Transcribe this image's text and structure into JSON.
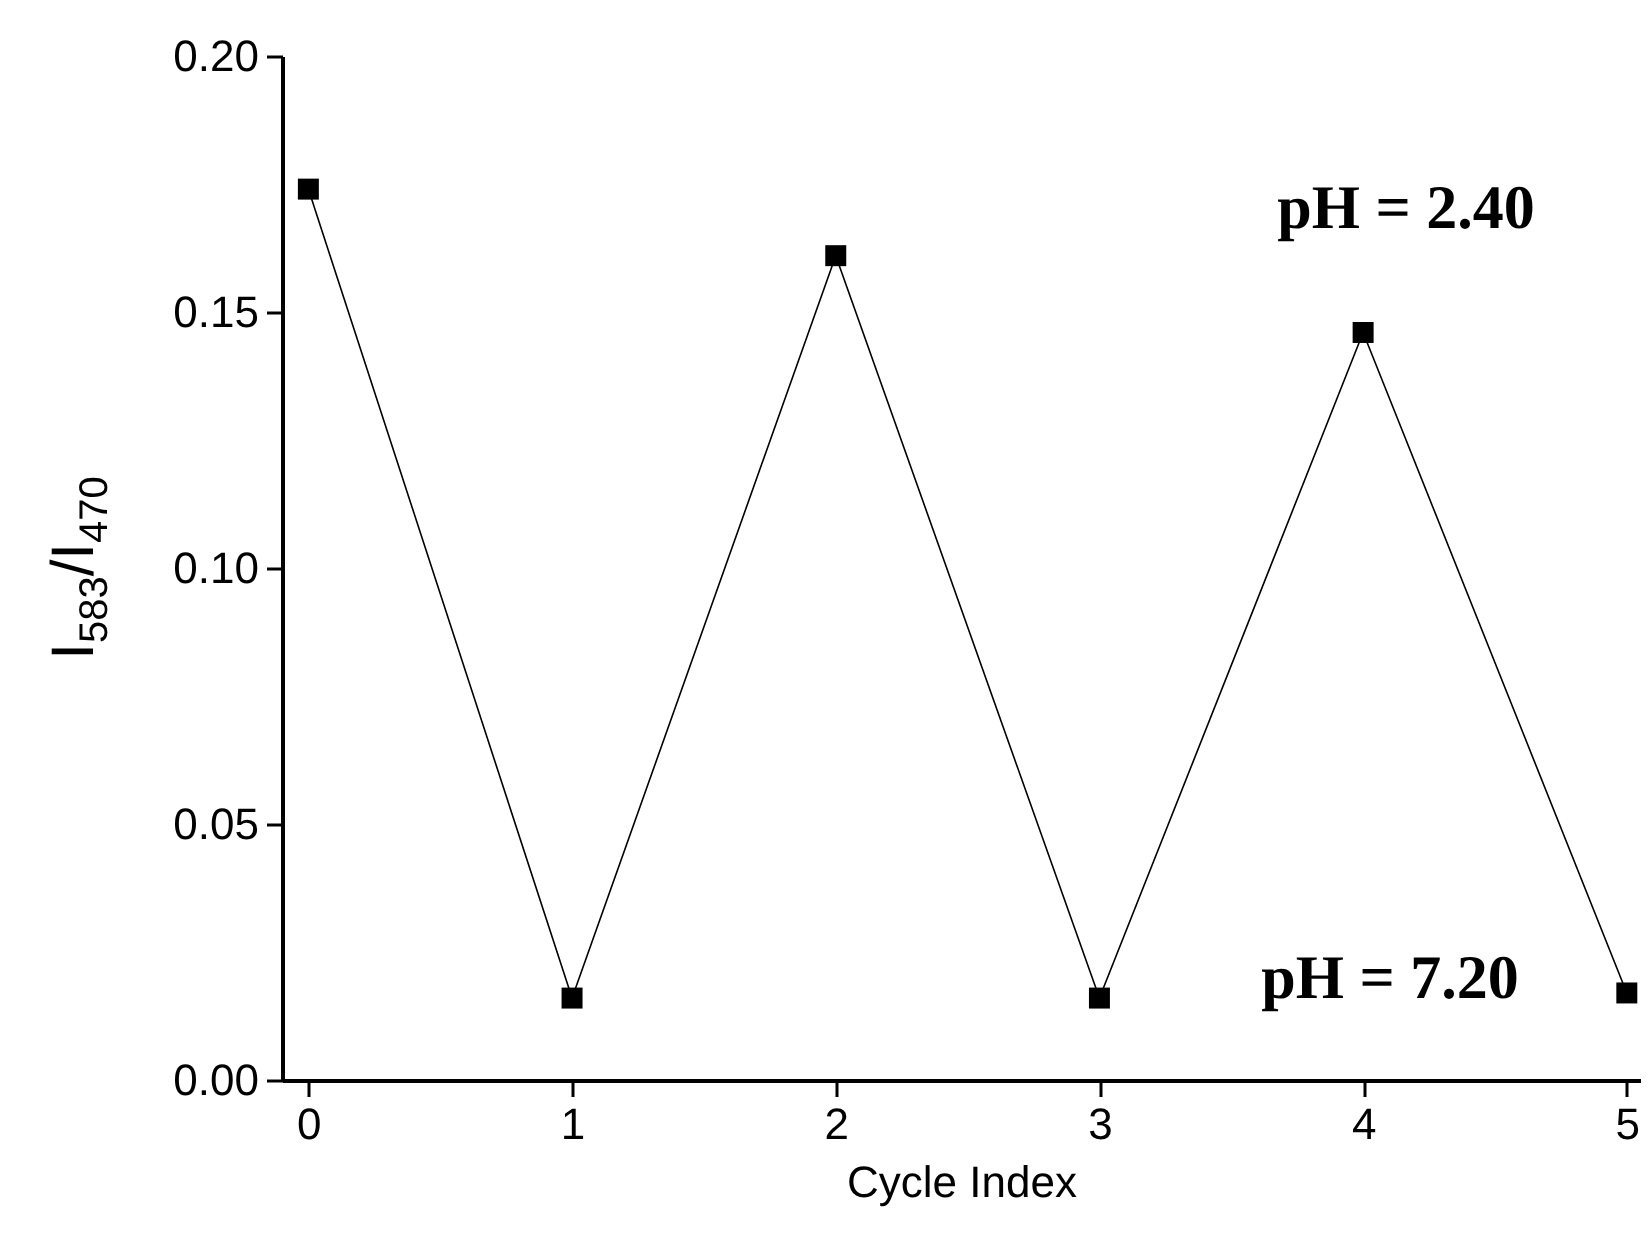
{
  "chart_data": {
    "type": "line",
    "xlabel": "Cycle Index",
    "ylabel": "I$_{583}$/I$_{470}$",
    "x": [
      0,
      1,
      2,
      3,
      4,
      5
    ],
    "series": [
      {
        "color": "#000000",
        "values": [
          0.174,
          0.016,
          0.161,
          0.016,
          0.146,
          0.017
        ]
      }
    ],
    "marker": "square",
    "xlim": [
      -0.1,
      5.05
    ],
    "xticks": [
      0,
      1,
      2,
      3,
      4,
      5
    ],
    "ylim": [
      0,
      0.2
    ],
    "yticks": [
      {
        "value": 0,
        "label": "0.00"
      },
      {
        "value": 0.05,
        "label": "0.05"
      },
      {
        "value": 0.1,
        "label": "0.10"
      },
      {
        "value": 0.15,
        "label": "0.15"
      },
      {
        "value": 0.2,
        "label": "0.20"
      }
    ],
    "annotations": [
      "pH = 2.40",
      "pH = 7.20"
    ]
  }
}
